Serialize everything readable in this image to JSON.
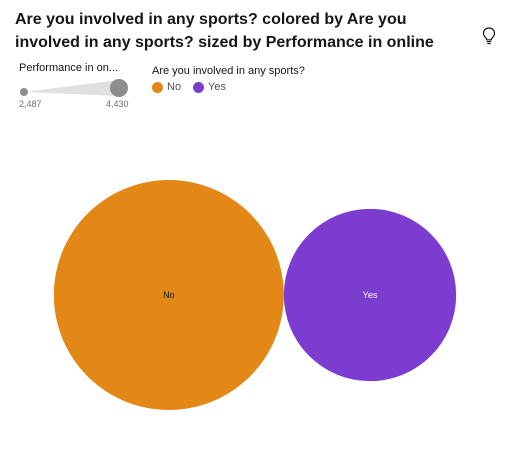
{
  "title": "Are you involved in any sports? colored by Are you involved in any sports? sized by Performance in online",
  "icons": {
    "insight": "lightbulb-icon"
  },
  "size_legend": {
    "label": "Performance in on...",
    "min_label": "2,487",
    "max_label": "4,430"
  },
  "color_legend": {
    "label": "Are you involved in any sports?",
    "items": [
      {
        "label": "No",
        "color": "#e38817"
      },
      {
        "label": "Yes",
        "color": "#7c3ccf"
      }
    ]
  },
  "chart_data": {
    "type": "bubble",
    "title": "Are you involved in any sports? colored by Are you involved in any sports? sized by Performance in online",
    "categories": [
      "No",
      "Yes"
    ],
    "values": [
      4430,
      2487
    ],
    "colors": [
      "#e38817",
      "#7c3ccf"
    ],
    "size_range": [
      2487,
      4430
    ]
  }
}
